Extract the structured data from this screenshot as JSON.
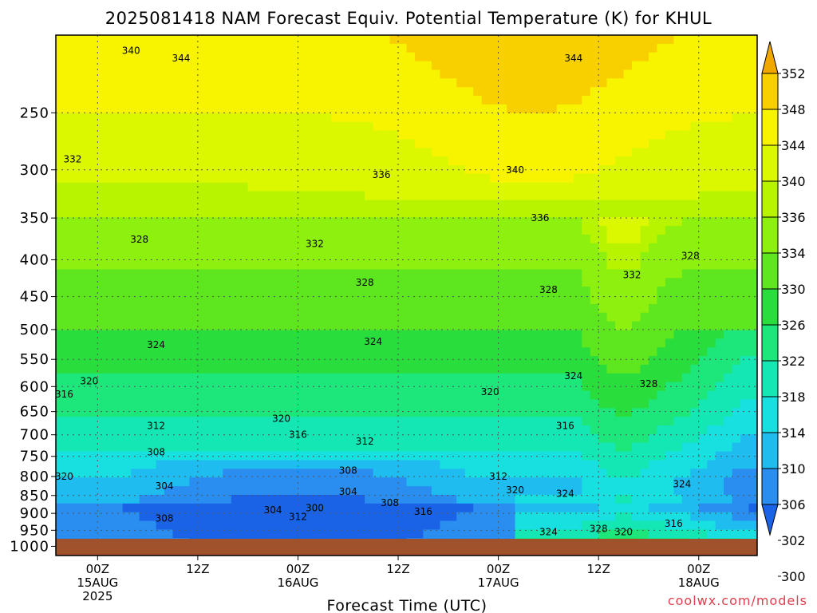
{
  "chart_data": {
    "type": "heatmap",
    "title": "2025081418 NAM Forecast Equiv. Potential Temperature (K) for KHUL",
    "xlabel": "Forecast Time (UTC)",
    "ylabel": "",
    "credit": "coolwx.com/models",
    "y_scale": "log",
    "ylim": [
      1030,
      195
    ],
    "xlim": [
      -5,
      79
    ],
    "y_ticks": [
      250,
      300,
      350,
      400,
      450,
      500,
      550,
      600,
      650,
      700,
      750,
      800,
      850,
      900,
      950,
      1000
    ],
    "x_ticks": [
      {
        "x": 0,
        "lines": [
          "00Z",
          "15AUG",
          "2025"
        ]
      },
      {
        "x": 12,
        "lines": [
          "12Z"
        ]
      },
      {
        "x": 24,
        "lines": [
          "00Z",
          "16AUG"
        ]
      },
      {
        "x": 36,
        "lines": [
          "12Z"
        ]
      },
      {
        "x": 48,
        "lines": [
          "00Z",
          "17AUG"
        ]
      },
      {
        "x": 60,
        "lines": [
          "12Z"
        ]
      },
      {
        "x": 72,
        "lines": [
          "00Z",
          "18AUG"
        ]
      }
    ],
    "colorbar": {
      "levels": [
        300,
        302,
        306,
        310,
        314,
        318,
        322,
        326,
        330,
        334,
        336,
        340,
        344,
        348,
        352
      ],
      "tick_labels": [
        "352",
        "348",
        "344",
        "340",
        "336",
        "334",
        "330",
        "326",
        "322",
        "318",
        "314",
        "310",
        "306",
        "302",
        "300"
      ],
      "colors": [
        "#1a63e6",
        "#2a8ef0",
        "#1fbcf0",
        "#18e0e0",
        "#14e6b4",
        "#1de67a",
        "#29de3c",
        "#5ee61e",
        "#8ef00e",
        "#b8f400",
        "#dcf800",
        "#f8f400",
        "#f8d000",
        "#f0a800"
      ]
    },
    "ground_color": "#a0522d",
    "contour_labels": [
      {
        "x": 4,
        "p": 205,
        "text": "340"
      },
      {
        "x": 10,
        "p": 210,
        "text": "344"
      },
      {
        "x": 57,
        "p": 210,
        "text": "344"
      },
      {
        "x": 50,
        "p": 300,
        "text": "340"
      },
      {
        "x": 34,
        "p": 305,
        "text": "336"
      },
      {
        "x": 53,
        "p": 350,
        "text": "336"
      },
      {
        "x": 26,
        "p": 380,
        "text": "332"
      },
      {
        "x": 64,
        "p": 420,
        "text": "332"
      },
      {
        "x": 5,
        "p": 375,
        "text": "328"
      },
      {
        "x": 32,
        "p": 430,
        "text": "328"
      },
      {
        "x": 54,
        "p": 440,
        "text": "328"
      },
      {
        "x": 71,
        "p": 395,
        "text": "328"
      },
      {
        "x": -3,
        "p": 290,
        "text": "332"
      },
      {
        "x": 7,
        "p": 525,
        "text": "324"
      },
      {
        "x": 33,
        "p": 520,
        "text": "324"
      },
      {
        "x": 57,
        "p": 580,
        "text": "324"
      },
      {
        "x": 66,
        "p": 595,
        "text": "328"
      },
      {
        "x": -1,
        "p": 590,
        "text": "320"
      },
      {
        "x": -4,
        "p": 615,
        "text": "316"
      },
      {
        "x": 22,
        "p": 665,
        "text": "320"
      },
      {
        "x": 47,
        "p": 610,
        "text": "320"
      },
      {
        "x": 7,
        "p": 680,
        "text": "312"
      },
      {
        "x": 24,
        "p": 700,
        "text": "316"
      },
      {
        "x": 32,
        "p": 715,
        "text": "312"
      },
      {
        "x": 56,
        "p": 680,
        "text": "316"
      },
      {
        "x": 7,
        "p": 740,
        "text": "308"
      },
      {
        "x": 30,
        "p": 785,
        "text": "308"
      },
      {
        "x": 48,
        "p": 800,
        "text": "312"
      },
      {
        "x": -4,
        "p": 800,
        "text": "320"
      },
      {
        "x": 8,
        "p": 825,
        "text": "304"
      },
      {
        "x": 30,
        "p": 840,
        "text": "304"
      },
      {
        "x": 50,
        "p": 835,
        "text": "320"
      },
      {
        "x": 56,
        "p": 845,
        "text": "324"
      },
      {
        "x": 70,
        "p": 820,
        "text": "324"
      },
      {
        "x": 35,
        "p": 870,
        "text": "308"
      },
      {
        "x": 21,
        "p": 890,
        "text": "304"
      },
      {
        "x": 26,
        "p": 885,
        "text": "300"
      },
      {
        "x": 24,
        "p": 910,
        "text": "312"
      },
      {
        "x": 39,
        "p": 895,
        "text": "316"
      },
      {
        "x": 8,
        "p": 915,
        "text": "308"
      },
      {
        "x": 54,
        "p": 955,
        "text": "324"
      },
      {
        "x": 60,
        "p": 945,
        "text": "328"
      },
      {
        "x": 63,
        "p": 955,
        "text": "320"
      },
      {
        "x": 69,
        "p": 930,
        "text": "316"
      }
    ]
  }
}
